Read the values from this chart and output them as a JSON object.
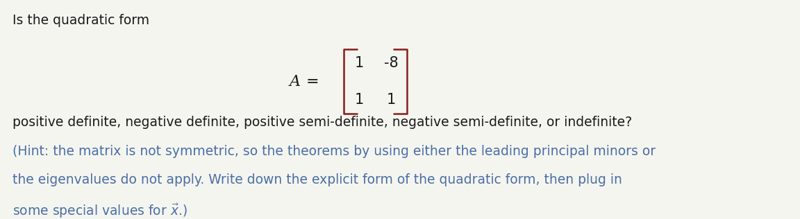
{
  "background_color": "#f5f5f0",
  "text_color": "#1a1a1a",
  "hint_text_color": "#4a6fa5",
  "matrix_bracket_color": "#8b1a1a",
  "title_line": "Is the quadratic form",
  "matrix_label": "A =",
  "matrix_row1": [
    "1",
    "-8"
  ],
  "matrix_row2": [
    "1",
    "1"
  ],
  "body_line1": "positive definite, negative definite, positive semi-definite, negative semi-definite, or indefinite?",
  "body_line2": "(Hint: the matrix is not symmetric, so the theorems by using either the leading principal minors or",
  "body_line3": "the eigenvalues do not apply. Write down the explicit form of the quadratic form, then plug in",
  "body_line4_text": "some special values for ",
  "body_line4_vec": "$\\vec{x}$",
  "body_line4_end": ".)",
  "fig_width": 11.52,
  "fig_height": 3.16,
  "dpi": 100
}
